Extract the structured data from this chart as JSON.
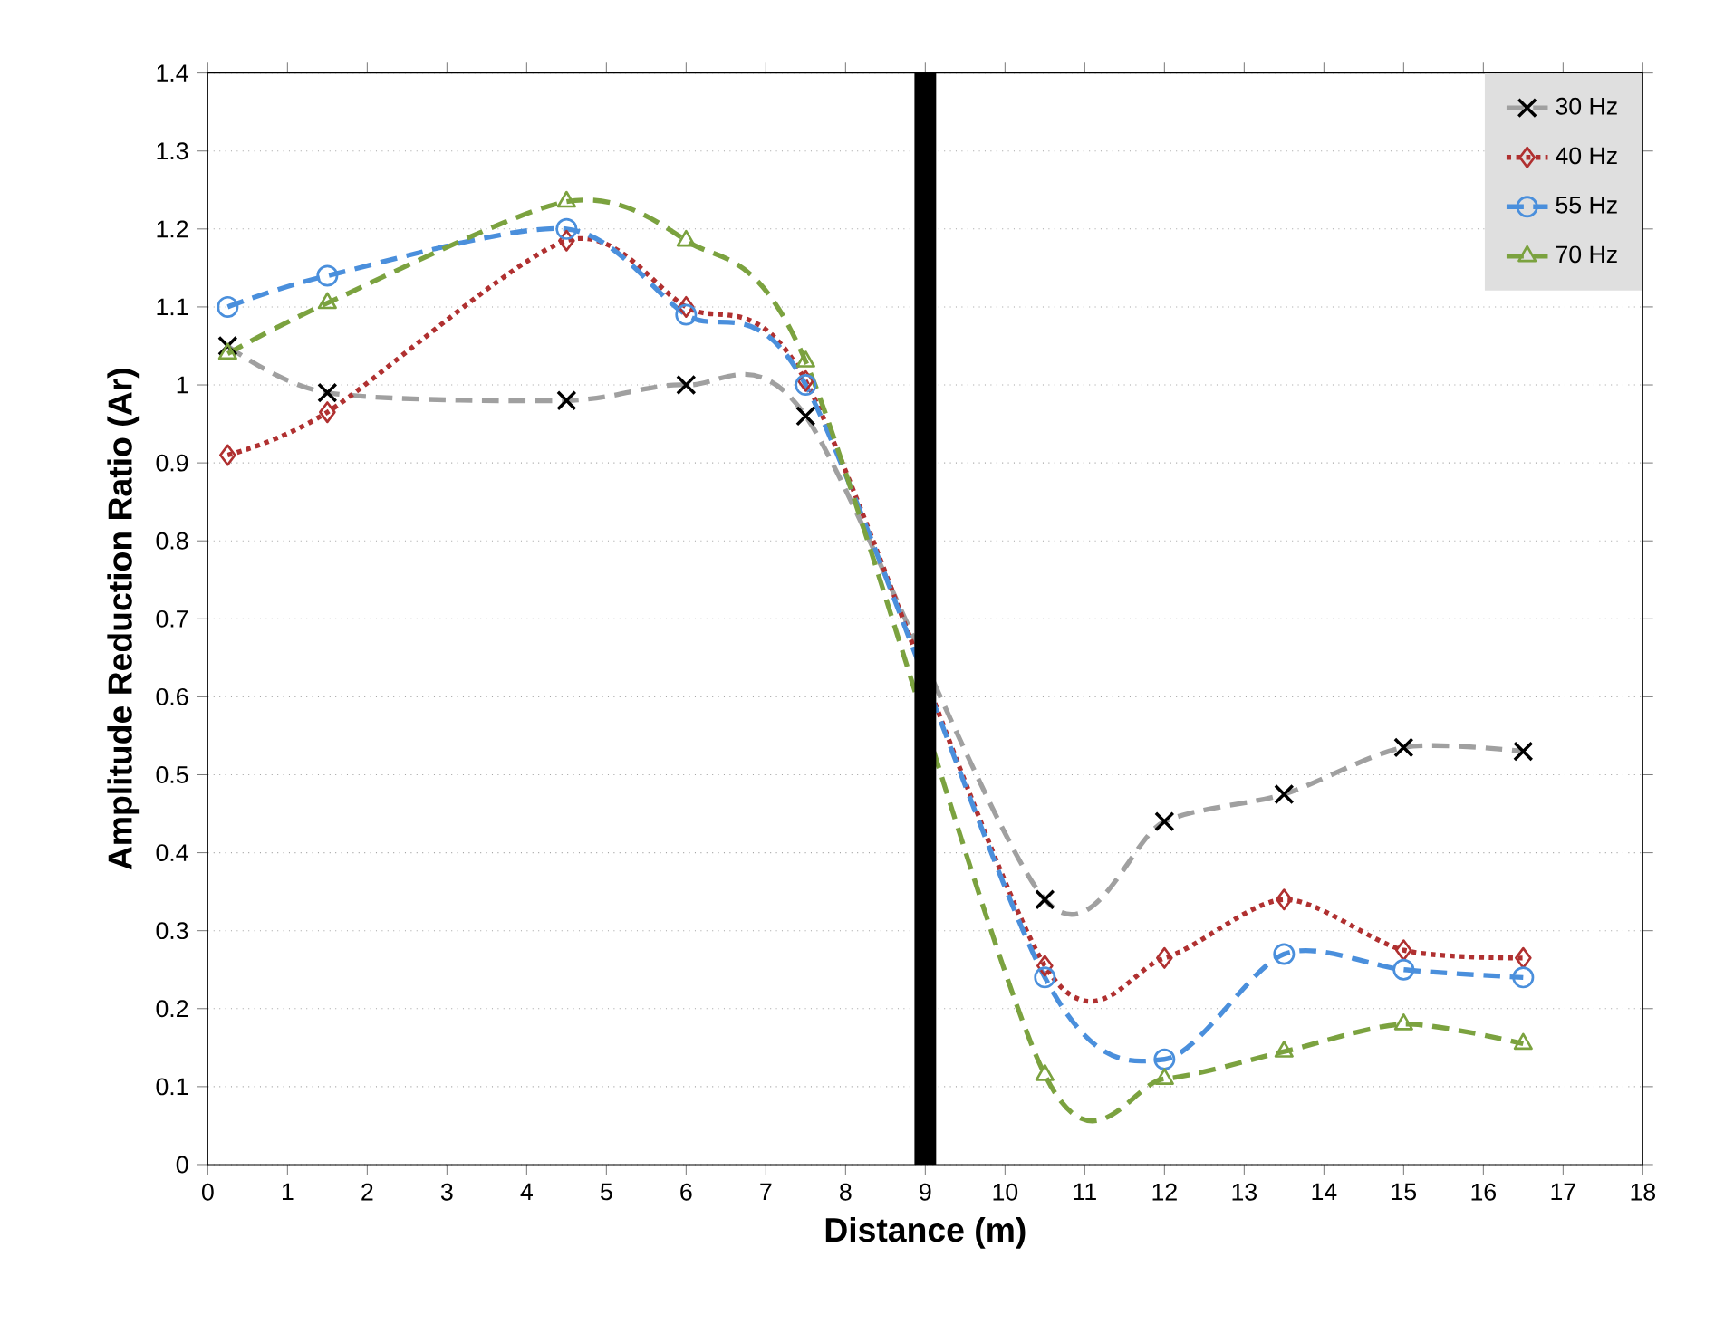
{
  "chart_data": {
    "type": "line",
    "xlabel": "Distance (m)",
    "ylabel": "Amplitude Reduction Ratio (Ar)",
    "x": [
      0.25,
      1.5,
      4.5,
      6,
      7.5,
      10.5,
      12,
      13.5,
      15,
      16.5
    ],
    "series": [
      {
        "name": "30 Hz",
        "color": "#a0a0a0",
        "marker": "cross",
        "line_style": "dashed",
        "values": [
          1.05,
          0.99,
          0.98,
          1.0,
          0.96,
          0.34,
          0.44,
          0.475,
          0.535,
          0.53
        ]
      },
      {
        "name": "40 Hz",
        "color": "#b03030",
        "marker": "diamond",
        "line_style": "dotted",
        "values": [
          0.91,
          0.965,
          1.185,
          1.1,
          1.005,
          0.255,
          0.265,
          0.34,
          0.275,
          0.265
        ]
      },
      {
        "name": "55 Hz",
        "color": "#4a8fdc",
        "marker": "circle",
        "line_style": "dashed",
        "values": [
          1.1,
          1.14,
          1.2,
          1.09,
          1.0,
          0.24,
          0.135,
          0.27,
          0.25,
          0.24
        ]
      },
      {
        "name": "70 Hz",
        "color": "#7ba23f",
        "marker": "triangle",
        "line_style": "dashed",
        "values": [
          1.04,
          1.105,
          1.235,
          1.185,
          1.03,
          0.115,
          0.11,
          0.145,
          0.18,
          0.155
        ]
      }
    ],
    "xlim": [
      0,
      18
    ],
    "xticks": [
      0,
      1,
      2,
      3,
      4,
      5,
      6,
      7,
      8,
      9,
      10,
      11,
      12,
      13,
      14,
      15,
      16,
      17,
      18
    ],
    "ylim": [
      0,
      1.4
    ],
    "yticks": [
      0,
      0.1,
      0.2,
      0.3,
      0.4,
      0.5,
      0.6,
      0.7,
      0.8,
      0.9,
      1,
      1.1,
      1.2,
      1.3,
      1.4
    ],
    "grid": "y",
    "legend": "top right",
    "ref_lines": [
      {
        "axis": "x",
        "value": 9,
        "color": "#000000"
      }
    ]
  }
}
